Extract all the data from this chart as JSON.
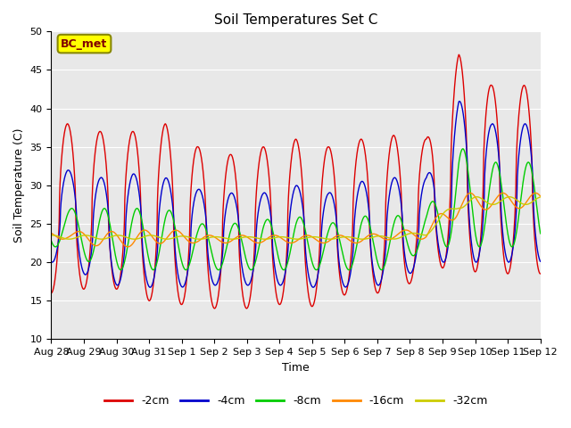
{
  "title": "Soil Temperatures Set C",
  "xlabel": "Time",
  "ylabel": "Soil Temperature (C)",
  "ylim": [
    10,
    50
  ],
  "background_color": "#e8e8e8",
  "grid_color": "white",
  "annotation_text": "BC_met",
  "annotation_box_color": "#ffff00",
  "annotation_text_color": "#800000",
  "annotation_border_color": "#888800",
  "series_colors": [
    "#dd0000",
    "#0000cc",
    "#00cc00",
    "#ff8800",
    "#cccc00"
  ],
  "series_labels": [
    "-2cm",
    "-4cm",
    "-8cm",
    "-16cm",
    "-32cm"
  ],
  "tick_labels": [
    "Aug 28",
    "Aug 29",
    "Aug 30",
    "Aug 31",
    "Sep 1",
    "Sep 2",
    "Sep 3",
    "Sep 4",
    "Sep 5",
    "Sep 6",
    "Sep 7",
    "Sep 8",
    "Sep 9",
    "Sep 10",
    "Sep 11",
    "Sep 12"
  ],
  "tick_positions": [
    0,
    1,
    2,
    3,
    4,
    5,
    6,
    7,
    8,
    9,
    10,
    11,
    12,
    13,
    14,
    15
  ]
}
